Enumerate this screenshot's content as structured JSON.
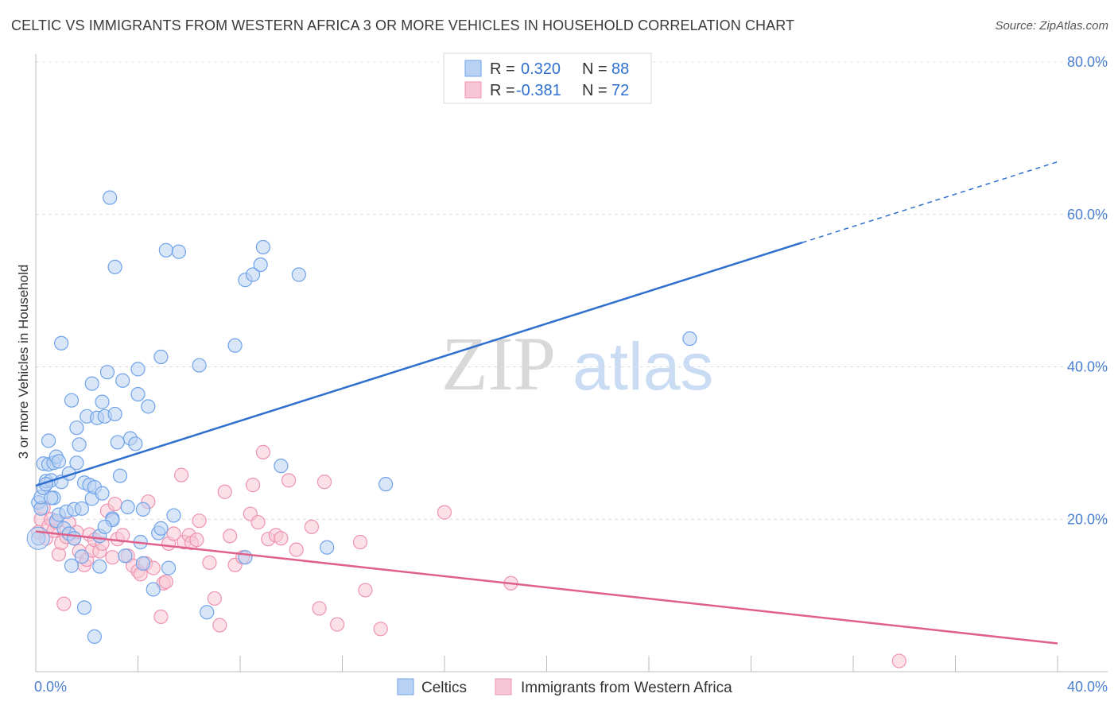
{
  "title": "CELTIC VS IMMIGRANTS FROM WESTERN AFRICA 3 OR MORE VEHICLES IN HOUSEHOLD CORRELATION CHART",
  "source": "Source: ZipAtlas.com",
  "watermark": {
    "zip": "ZIP",
    "atlas": "atlas"
  },
  "legend_top": {
    "rows": [
      {
        "r_label": "R =",
        "r_value": "0.320",
        "n_label": "N =",
        "n_value": "88"
      },
      {
        "r_label": "R =",
        "r_value": "-0.381",
        "n_label": "N =",
        "n_value": "72"
      }
    ]
  },
  "chart_data": {
    "type": "scatter",
    "ylabel": "3 or more Vehicles in Household",
    "xlim": [
      0,
      40
    ],
    "ylim": [
      0,
      80
    ],
    "x_tick_labels": [
      "0.0%",
      "40.0%"
    ],
    "y_ticks": [
      20,
      40,
      60,
      80
    ],
    "y_tick_labels": [
      "20.0%",
      "40.0%",
      "60.0%",
      "80.0%"
    ],
    "grid": true,
    "legend_position": "top-center",
    "series": [
      {
        "name": "Celtics",
        "color": "#6fa3e8",
        "fill": "#b9d1f3",
        "trend": {
          "x0": 0,
          "y0": 24.4,
          "x1": 30,
          "y1": 56.3,
          "dash_to_x": 40,
          "dash_to_y": 66.9,
          "color": "#2f6fcf"
        },
        "points": [
          [
            0.1,
            22.2
          ],
          [
            0.2,
            21.4
          ],
          [
            0.2,
            22.9
          ],
          [
            0.3,
            24.1
          ],
          [
            0.3,
            27.3
          ],
          [
            0.4,
            25.0
          ],
          [
            0.5,
            27.2
          ],
          [
            0.5,
            30.3
          ],
          [
            0.6,
            25.1
          ],
          [
            0.7,
            22.8
          ],
          [
            0.7,
            27.4
          ],
          [
            0.8,
            28.2
          ],
          [
            0.8,
            19.8
          ],
          [
            0.9,
            20.6
          ],
          [
            0.9,
            27.6
          ],
          [
            1.0,
            24.9
          ],
          [
            1.0,
            43.1
          ],
          [
            1.1,
            18.8
          ],
          [
            1.2,
            21.0
          ],
          [
            1.3,
            18.1
          ],
          [
            1.3,
            26.0
          ],
          [
            1.4,
            35.6
          ],
          [
            1.4,
            13.9
          ],
          [
            1.5,
            21.3
          ],
          [
            1.5,
            17.5
          ],
          [
            1.6,
            32.0
          ],
          [
            1.6,
            27.4
          ],
          [
            1.7,
            29.8
          ],
          [
            1.8,
            15.1
          ],
          [
            1.9,
            24.8
          ],
          [
            1.9,
            8.4
          ],
          [
            2.0,
            33.5
          ],
          [
            2.1,
            24.5
          ],
          [
            2.2,
            22.7
          ],
          [
            2.2,
            37.8
          ],
          [
            2.3,
            24.2
          ],
          [
            2.3,
            4.6
          ],
          [
            2.4,
            33.3
          ],
          [
            2.5,
            13.8
          ],
          [
            2.5,
            17.8
          ],
          [
            2.6,
            23.4
          ],
          [
            2.6,
            35.4
          ],
          [
            2.7,
            33.5
          ],
          [
            2.8,
            39.3
          ],
          [
            2.9,
            62.2
          ],
          [
            3.0,
            20.1
          ],
          [
            3.0,
            19.9
          ],
          [
            3.1,
            53.1
          ],
          [
            3.1,
            33.8
          ],
          [
            3.2,
            30.1
          ],
          [
            3.3,
            25.7
          ],
          [
            3.4,
            38.2
          ],
          [
            3.5,
            15.2
          ],
          [
            3.7,
            30.6
          ],
          [
            3.9,
            29.9
          ],
          [
            4.0,
            36.4
          ],
          [
            4.0,
            39.7
          ],
          [
            4.1,
            17.0
          ],
          [
            4.2,
            21.3
          ],
          [
            4.2,
            14.2
          ],
          [
            4.4,
            34.8
          ],
          [
            4.6,
            10.8
          ],
          [
            4.8,
            18.2
          ],
          [
            4.9,
            18.8
          ],
          [
            4.9,
            41.3
          ],
          [
            5.1,
            55.3
          ],
          [
            5.2,
            13.6
          ],
          [
            5.4,
            20.5
          ],
          [
            5.6,
            55.1
          ],
          [
            6.4,
            40.2
          ],
          [
            6.7,
            7.8
          ],
          [
            7.8,
            42.8
          ],
          [
            8.2,
            51.4
          ],
          [
            8.2,
            15.0
          ],
          [
            8.5,
            52.1
          ],
          [
            8.8,
            53.4
          ],
          [
            8.9,
            55.7
          ],
          [
            9.6,
            27.0
          ],
          [
            10.3,
            52.1
          ],
          [
            11.4,
            16.3
          ],
          [
            13.7,
            24.6
          ],
          [
            25.6,
            43.7
          ],
          [
            0.1,
            17.5
          ],
          [
            0.4,
            24.6
          ],
          [
            0.6,
            22.8
          ],
          [
            1.8,
            21.4
          ],
          [
            2.7,
            19.0
          ],
          [
            3.6,
            21.6
          ]
        ]
      },
      {
        "name": "Immigrants from Western Africa",
        "color": "#ee93b0",
        "fill": "#f7c6d6",
        "trend": {
          "x0": 0,
          "y0": 18.4,
          "x1": 40,
          "y1": 3.7,
          "color": "#e0608c"
        },
        "points": [
          [
            0.1,
            18.3
          ],
          [
            0.2,
            20.0
          ],
          [
            0.3,
            21.5
          ],
          [
            0.4,
            17.5
          ],
          [
            0.5,
            19.1
          ],
          [
            0.6,
            20.0
          ],
          [
            0.7,
            18.5
          ],
          [
            0.8,
            19.6
          ],
          [
            0.9,
            15.4
          ],
          [
            1.0,
            16.9
          ],
          [
            1.1,
            8.9
          ],
          [
            1.2,
            17.7
          ],
          [
            1.3,
            19.5
          ],
          [
            1.5,
            17.5
          ],
          [
            1.6,
            18.3
          ],
          [
            1.7,
            15.8
          ],
          [
            1.9,
            14.0
          ],
          [
            2.0,
            14.7
          ],
          [
            2.1,
            18.0
          ],
          [
            2.2,
            15.9
          ],
          [
            2.3,
            17.3
          ],
          [
            2.5,
            15.8
          ],
          [
            2.6,
            16.8
          ],
          [
            2.8,
            21.1
          ],
          [
            3.0,
            15.0
          ],
          [
            3.1,
            22.0
          ],
          [
            3.2,
            17.4
          ],
          [
            3.4,
            17.9
          ],
          [
            3.6,
            15.2
          ],
          [
            3.8,
            13.9
          ],
          [
            4.0,
            13.2
          ],
          [
            4.1,
            12.8
          ],
          [
            4.3,
            14.2
          ],
          [
            4.4,
            22.3
          ],
          [
            4.6,
            13.6
          ],
          [
            4.9,
            7.2
          ],
          [
            5.0,
            11.6
          ],
          [
            5.1,
            11.8
          ],
          [
            5.2,
            16.8
          ],
          [
            5.4,
            18.1
          ],
          [
            5.7,
            25.8
          ],
          [
            5.8,
            17.0
          ],
          [
            6.0,
            17.9
          ],
          [
            6.1,
            16.9
          ],
          [
            6.3,
            17.3
          ],
          [
            6.4,
            19.8
          ],
          [
            6.8,
            14.3
          ],
          [
            7.0,
            9.6
          ],
          [
            7.2,
            6.1
          ],
          [
            7.4,
            23.6
          ],
          [
            7.6,
            17.8
          ],
          [
            7.8,
            14.0
          ],
          [
            8.1,
            15.0
          ],
          [
            8.4,
            20.7
          ],
          [
            8.5,
            24.5
          ],
          [
            8.7,
            19.6
          ],
          [
            8.9,
            28.8
          ],
          [
            9.1,
            17.4
          ],
          [
            9.4,
            17.9
          ],
          [
            9.6,
            17.5
          ],
          [
            9.9,
            25.1
          ],
          [
            10.2,
            16.0
          ],
          [
            10.8,
            19.0
          ],
          [
            11.1,
            8.3
          ],
          [
            11.3,
            24.9
          ],
          [
            11.8,
            6.2
          ],
          [
            12.7,
            17.0
          ],
          [
            12.9,
            10.7
          ],
          [
            13.5,
            5.6
          ],
          [
            16.0,
            20.9
          ],
          [
            18.6,
            11.6
          ],
          [
            33.8,
            1.4
          ]
        ]
      }
    ]
  }
}
